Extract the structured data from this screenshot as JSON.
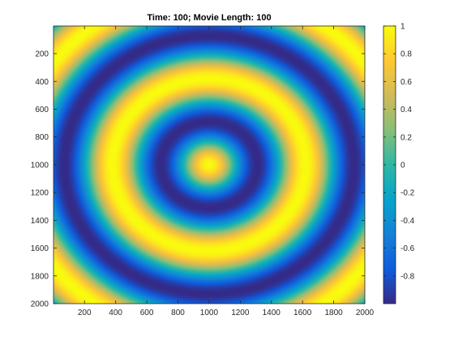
{
  "figure": {
    "title": "Time: 100; Movie Length: 100"
  },
  "colormap": {
    "name": "parula",
    "stops": [
      "#352a87",
      "#0f5cdd",
      "#1481d6",
      "#06a4ca",
      "#2eb7a4",
      "#87bf77",
      "#d1bb59",
      "#fec832",
      "#f9fb0e"
    ]
  },
  "chart_data": {
    "type": "heatmap",
    "title": "Time: 100; Movie Length: 100",
    "xlabel": "",
    "ylabel": "",
    "x_range": [
      1,
      2000
    ],
    "y_range": [
      1,
      2000
    ],
    "y_reversed": true,
    "x_ticks": [
      200,
      400,
      600,
      800,
      1000,
      1200,
      1400,
      1600,
      1800,
      2000
    ],
    "x_tick_labels": [
      "200",
      "400",
      "600",
      "800",
      "1000",
      "1200",
      "1400",
      "1600",
      "1800",
      "2000"
    ],
    "y_ticks": [
      200,
      400,
      600,
      800,
      1000,
      1200,
      1400,
      1600,
      1800,
      2000
    ],
    "y_tick_labels": [
      "200",
      "400",
      "600",
      "800",
      "1000",
      "1200",
      "1400",
      "1600",
      "1800",
      "2000"
    ],
    "center": [
      1000,
      1000
    ],
    "function": "cos(k * r), r = distance from center",
    "wavelength": 620,
    "value_range": [
      -1,
      1
    ],
    "colorbar": {
      "ticks": [
        1,
        0.8,
        0.6,
        0.4,
        0.2,
        0,
        -0.2,
        -0.4,
        -0.6,
        -0.8
      ],
      "tick_labels": [
        "1",
        "0.8",
        "0.6",
        "0.4",
        "0.2",
        "0",
        "-0.2",
        "-0.4",
        "-0.6",
        "-0.8"
      ]
    }
  }
}
